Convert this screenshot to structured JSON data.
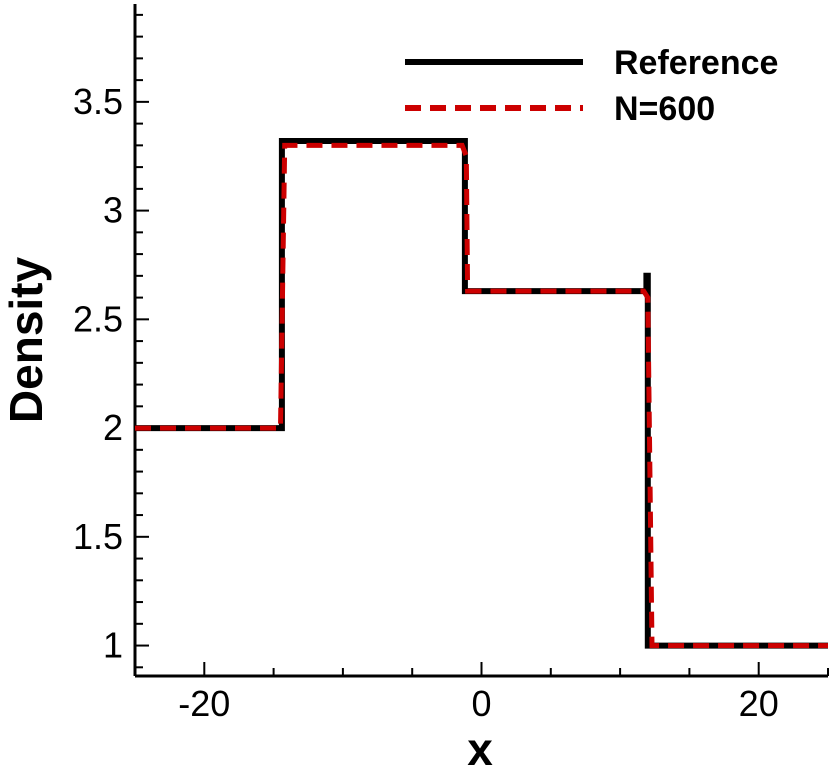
{
  "chart_data": {
    "type": "line",
    "title": "",
    "xlabel": "x",
    "ylabel": "Density",
    "xlim": [
      -25,
      25
    ],
    "ylim": [
      0.86,
      3.95
    ],
    "x_ticks": [
      -20,
      0,
      20
    ],
    "x_tick_labels": [
      "-20",
      "0",
      "20"
    ],
    "y_ticks": [
      1,
      1.5,
      2,
      2.5,
      3,
      3.5
    ],
    "y_tick_labels": [
      "1",
      "1.5",
      "2",
      "2.5",
      "3",
      "3.5"
    ],
    "grid": false,
    "legend_position": "top-right",
    "series": [
      {
        "name": "Reference",
        "color": "#000000",
        "style": "solid",
        "x": [
          -25,
          -14.4,
          -14.4,
          -1.2,
          -1.2,
          11.9,
          11.9,
          12.0,
          12.0,
          25
        ],
        "y": [
          2.0,
          2.0,
          3.32,
          3.32,
          2.63,
          2.63,
          2.7,
          2.7,
          1.0,
          1.0
        ]
      },
      {
        "name": "N=600",
        "color": "#cc0000",
        "style": "dashed",
        "x": [
          -25,
          -14.5,
          -14.2,
          -1.4,
          -1.1,
          -1.0,
          11.7,
          12.0,
          12.3,
          25
        ],
        "y": [
          2.0,
          2.0,
          3.3,
          3.3,
          3.25,
          2.63,
          2.63,
          2.6,
          1.0,
          1.0
        ]
      }
    ]
  }
}
